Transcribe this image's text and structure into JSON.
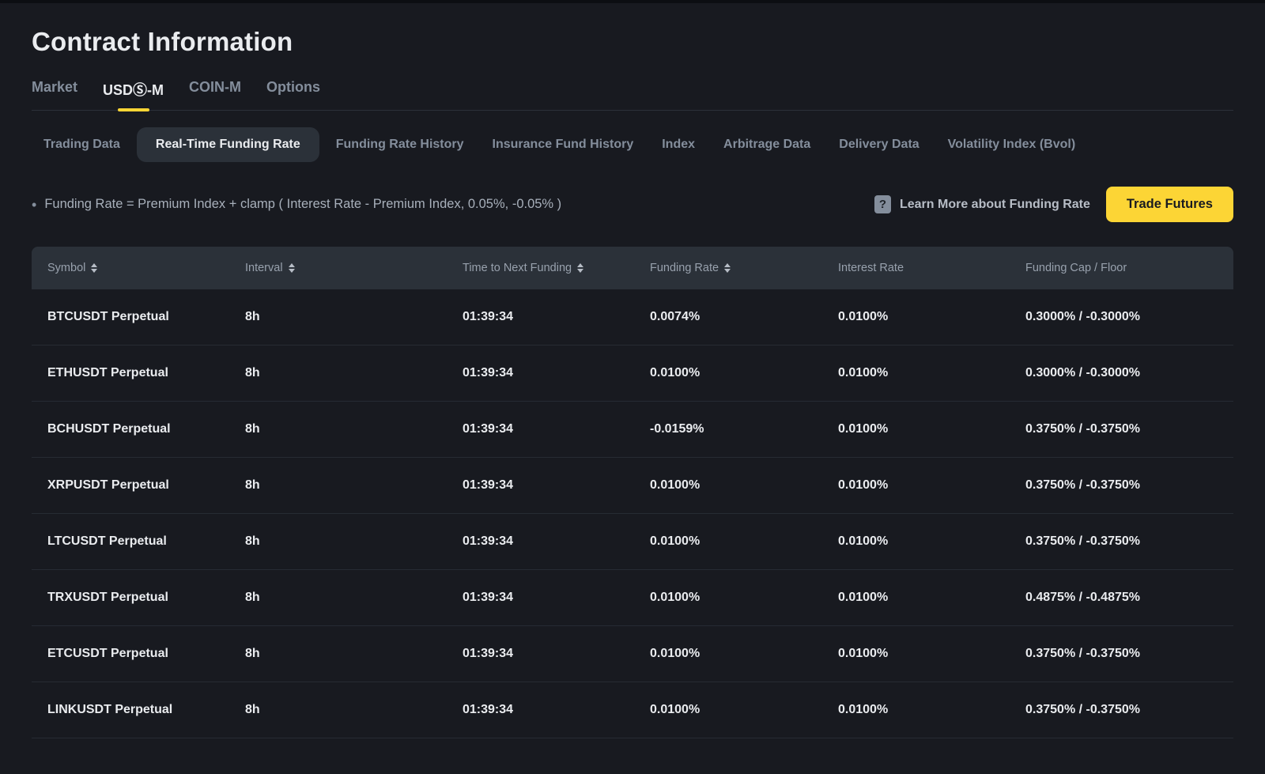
{
  "colors": {
    "background": "#181a20",
    "panel": "#2b3139",
    "accent_yellow": "#fcd535",
    "text_primary": "#eaecef",
    "text_secondary": "#848e9c"
  },
  "page": {
    "title": "Contract Information"
  },
  "main_tabs": {
    "items": [
      {
        "label": "Market",
        "active": false
      },
      {
        "label": "USDⓈ-M",
        "active": true
      },
      {
        "label": "COIN-M",
        "active": false
      },
      {
        "label": "Options",
        "active": false
      }
    ]
  },
  "sub_tabs": {
    "items": [
      {
        "label": "Trading Data",
        "active": false
      },
      {
        "label": "Real-Time Funding Rate",
        "active": true
      },
      {
        "label": "Funding Rate History",
        "active": false
      },
      {
        "label": "Insurance Fund History",
        "active": false
      },
      {
        "label": "Index",
        "active": false
      },
      {
        "label": "Arbitrage Data",
        "active": false
      },
      {
        "label": "Delivery Data",
        "active": false
      },
      {
        "label": "Volatility Index (Bvol)",
        "active": false
      }
    ]
  },
  "info_bar": {
    "bullet": "•",
    "formula": "Funding Rate = Premium Index + clamp ( Interest Rate - Premium Index, 0.05%, -0.05% )",
    "learn_more_icon_glyph": "?",
    "learn_more_label": "Learn More about Funding Rate",
    "trade_button_label": "Trade Futures"
  },
  "table": {
    "columns": [
      {
        "label": "Symbol",
        "sortable": true
      },
      {
        "label": "Interval",
        "sortable": true
      },
      {
        "label": "Time to Next Funding",
        "sortable": true
      },
      {
        "label": "Funding Rate",
        "sortable": true
      },
      {
        "label": "Interest Rate",
        "sortable": false
      },
      {
        "label": "Funding Cap / Floor",
        "sortable": false
      }
    ],
    "rows": [
      {
        "symbol": "BTCUSDT Perpetual",
        "interval": "8h",
        "time_to_next_funding": "01:39:34",
        "funding_rate": "0.0074%",
        "interest_rate": "0.0100%",
        "funding_cap_floor": "0.3000% / -0.3000%"
      },
      {
        "symbol": "ETHUSDT Perpetual",
        "interval": "8h",
        "time_to_next_funding": "01:39:34",
        "funding_rate": "0.0100%",
        "interest_rate": "0.0100%",
        "funding_cap_floor": "0.3000% / -0.3000%"
      },
      {
        "symbol": "BCHUSDT Perpetual",
        "interval": "8h",
        "time_to_next_funding": "01:39:34",
        "funding_rate": "-0.0159%",
        "interest_rate": "0.0100%",
        "funding_cap_floor": "0.3750% / -0.3750%"
      },
      {
        "symbol": "XRPUSDT Perpetual",
        "interval": "8h",
        "time_to_next_funding": "01:39:34",
        "funding_rate": "0.0100%",
        "interest_rate": "0.0100%",
        "funding_cap_floor": "0.3750% / -0.3750%"
      },
      {
        "symbol": "LTCUSDT Perpetual",
        "interval": "8h",
        "time_to_next_funding": "01:39:34",
        "funding_rate": "0.0100%",
        "interest_rate": "0.0100%",
        "funding_cap_floor": "0.3750% / -0.3750%"
      },
      {
        "symbol": "TRXUSDT Perpetual",
        "interval": "8h",
        "time_to_next_funding": "01:39:34",
        "funding_rate": "0.0100%",
        "interest_rate": "0.0100%",
        "funding_cap_floor": "0.4875% / -0.4875%"
      },
      {
        "symbol": "ETCUSDT Perpetual",
        "interval": "8h",
        "time_to_next_funding": "01:39:34",
        "funding_rate": "0.0100%",
        "interest_rate": "0.0100%",
        "funding_cap_floor": "0.3750% / -0.3750%"
      },
      {
        "symbol": "LINKUSDT Perpetual",
        "interval": "8h",
        "time_to_next_funding": "01:39:34",
        "funding_rate": "0.0100%",
        "interest_rate": "0.0100%",
        "funding_cap_floor": "0.3750% / -0.3750%"
      }
    ]
  }
}
